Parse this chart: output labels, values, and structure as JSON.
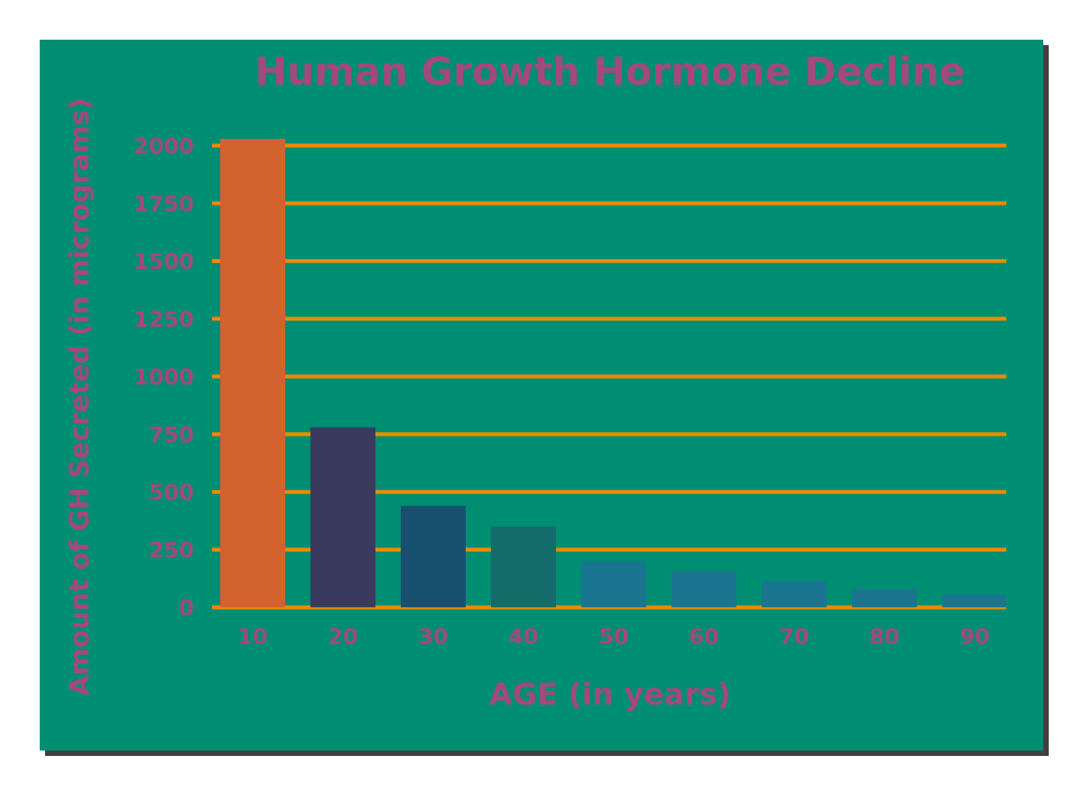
{
  "chart_data": {
    "type": "bar",
    "title": "Human Growth Hormone Decline",
    "xlabel": "AGE (in years)",
    "ylabel": "Amount of GH Secreted (in micrograms)",
    "categories": [
      "10",
      "20",
      "30",
      "40",
      "50",
      "60",
      "70",
      "80",
      "90"
    ],
    "values": [
      2030,
      780,
      440,
      350,
      200,
      155,
      115,
      80,
      55
    ],
    "colors": [
      "#d2622e",
      "#3a3a5e",
      "#17506e",
      "#136b6a",
      "#1a7590",
      "#1a7590",
      "#1a7590",
      "#1a7590",
      "#1a7590"
    ],
    "ylim": [
      0,
      2030
    ],
    "yticks": [
      0,
      250,
      500,
      750,
      1000,
      1250,
      1500,
      1750,
      2000
    ],
    "grid": "y"
  }
}
